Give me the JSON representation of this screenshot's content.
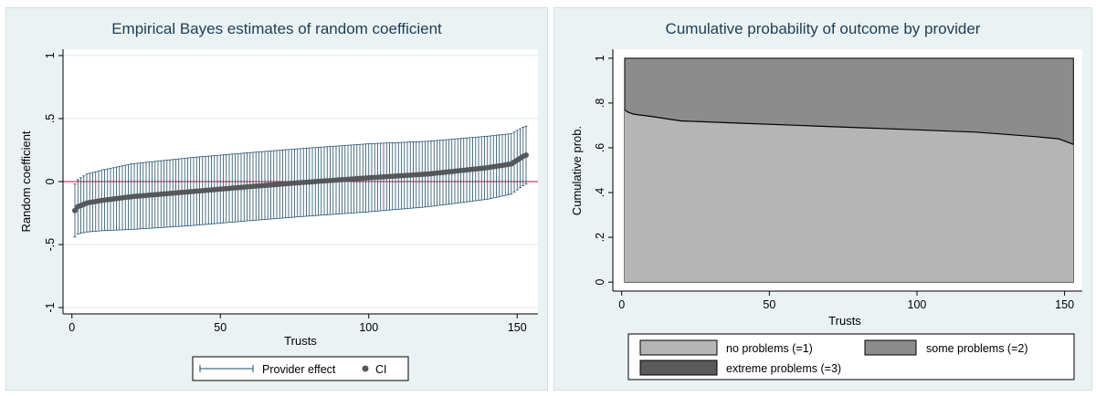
{
  "colors": {
    "panel_bg": "#eaf2f3",
    "plot_bg": "#ffffff",
    "ci_bar": "#1f4e6b",
    "point": "#55585a",
    "zero_line": "#b3134a",
    "no_problems": "#b5b5b5",
    "some_problems": "#8c8c8c",
    "extreme_problems": "#5a5a5a",
    "title": "#1e3d53"
  },
  "chart_data": [
    {
      "type": "scatter",
      "title": "Empirical Bayes estimates of random coefficient",
      "xlabel": "Trusts",
      "ylabel": "Random coefficient",
      "xlim": [
        -3,
        157
      ],
      "ylim": [
        -1.05,
        1.05
      ],
      "x_ticks": [
        0,
        50,
        100,
        150
      ],
      "x_tick_labels": [
        "0",
        "50",
        "100",
        "150"
      ],
      "y_ticks": [
        -1,
        -0.5,
        0,
        0.5,
        1
      ],
      "y_tick_labels": [
        "-1",
        "-.5",
        "0",
        ".5",
        "1"
      ],
      "grid": true,
      "reference_line_y": 0,
      "n_points": 153,
      "estimate_profile": {
        "x": [
          1,
          2,
          5,
          10,
          20,
          40,
          60,
          76,
          100,
          120,
          140,
          148,
          150,
          152,
          153
        ],
        "y": [
          -0.23,
          -0.2,
          -0.17,
          -0.15,
          -0.12,
          -0.08,
          -0.04,
          -0.01,
          0.03,
          0.06,
          0.11,
          0.14,
          0.17,
          0.2,
          0.21
        ]
      },
      "ci_halfwidth_profile": {
        "x": [
          1,
          5,
          20,
          40,
          60,
          76,
          100,
          120,
          140,
          148,
          153
        ],
        "y": [
          0.21,
          0.23,
          0.26,
          0.27,
          0.27,
          0.27,
          0.27,
          0.26,
          0.25,
          0.24,
          0.23
        ]
      },
      "legend": {
        "position": "bottom",
        "entries": [
          {
            "label": "Provider effect",
            "marker": "capped-line"
          },
          {
            "label": "CI",
            "marker": "dot"
          }
        ]
      }
    },
    {
      "type": "area",
      "title": "Cumulative probability of outcome by provider",
      "xlabel": "Trusts",
      "ylabel": "Cumulative prob.",
      "xlim": [
        -3,
        156
      ],
      "ylim": [
        -0.04,
        1.04
      ],
      "x_ticks": [
        0,
        50,
        100,
        150
      ],
      "x_tick_labels": [
        "0",
        "50",
        "100",
        "150"
      ],
      "y_ticks": [
        0,
        0.2,
        0.4,
        0.6,
        0.8,
        1
      ],
      "y_tick_labels": [
        "0",
        ".2",
        ".4",
        ".6",
        ".8",
        "1"
      ],
      "x_range": [
        1,
        153
      ],
      "series": [
        {
          "name": "no problems (=1)",
          "x": [
            1,
            2,
            4,
            10,
            20,
            40,
            60,
            80,
            100,
            120,
            140,
            148,
            150,
            152,
            153
          ],
          "y": [
            0.77,
            0.76,
            0.75,
            0.74,
            0.72,
            0.71,
            0.7,
            0.69,
            0.68,
            0.67,
            0.65,
            0.64,
            0.63,
            0.62,
            0.615
          ]
        },
        {
          "name": "some problems (=2)",
          "x": [
            1,
            153
          ],
          "y": [
            1.0,
            1.0
          ]
        },
        {
          "name": "extreme problems (=3)",
          "x": [
            1,
            153
          ],
          "y": [
            1.0,
            1.0
          ]
        }
      ],
      "legend": {
        "position": "bottom",
        "entries": [
          "no problems (=1)",
          "some problems (=2)",
          "extreme problems (=3)"
        ]
      }
    }
  ]
}
